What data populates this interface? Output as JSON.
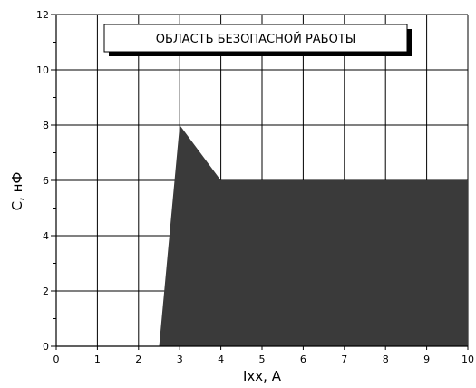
{
  "chart_data": {
    "type": "area",
    "title": "ОБЛАСТЬ БЕЗОПАСНОЙ РАБОТЫ",
    "xlabel": "Ixx, A",
    "ylabel": "C, нФ",
    "xlim": [
      0,
      10
    ],
    "ylim": [
      0,
      12
    ],
    "x_ticks": [
      "0",
      "1",
      "2",
      "3",
      "4",
      "5",
      "6",
      "7",
      "8",
      "9",
      "10"
    ],
    "y_ticks": [
      "0",
      "2",
      "4",
      "6",
      "8",
      "10",
      "12"
    ],
    "grid": true,
    "fill_color": "#3a3a3a",
    "series": [
      {
        "x": [
          2.5,
          3,
          4,
          10
        ],
        "y": [
          0,
          8,
          6,
          6
        ]
      }
    ]
  }
}
